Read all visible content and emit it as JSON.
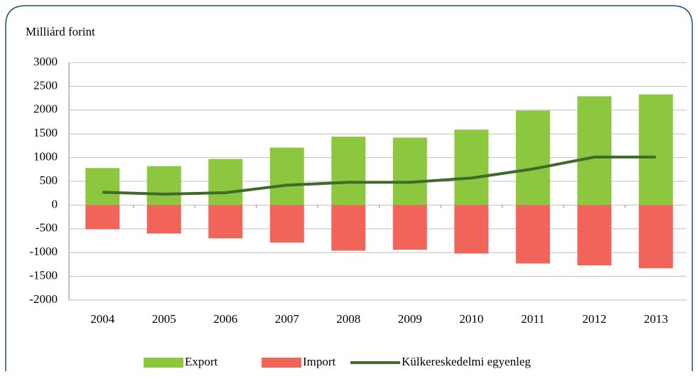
{
  "chart_data": {
    "type": "bar-line",
    "title": "Milliárd forint",
    "categories": [
      "2004",
      "2005",
      "2006",
      "2007",
      "2008",
      "2009",
      "2010",
      "2011",
      "2012",
      "2013"
    ],
    "series": [
      {
        "name": "Export",
        "type": "bar",
        "color": "#8dc63f",
        "values": [
          780,
          820,
          970,
          1210,
          1440,
          1420,
          1590,
          1990,
          2290,
          2330
        ]
      },
      {
        "name": "Import",
        "type": "bar",
        "color": "#f0645a",
        "values": [
          -510,
          -600,
          -700,
          -790,
          -960,
          -940,
          -1020,
          -1230,
          -1270,
          -1330
        ]
      },
      {
        "name": "Külkereskedelmi egyenleg",
        "type": "line",
        "color": "#3f6b2a",
        "values": [
          270,
          230,
          260,
          420,
          480,
          480,
          570,
          760,
          1010,
          1010
        ]
      }
    ],
    "ylim": [
      -2000,
      3000
    ],
    "yticks": [
      -2000,
      -1500,
      -1000,
      -500,
      0,
      500,
      1000,
      1500,
      2000,
      2500,
      3000
    ],
    "grid": true,
    "legend": "bottom"
  }
}
